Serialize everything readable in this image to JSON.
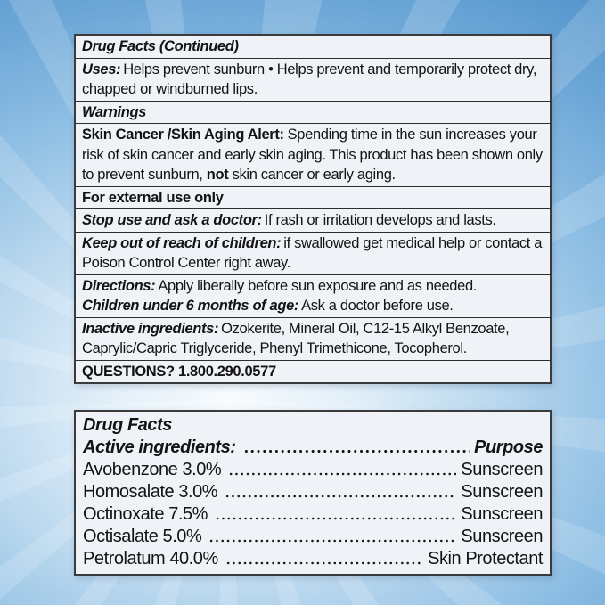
{
  "colors": {
    "sky_deep": "#4f92c9",
    "sky_light": "#e2eff9",
    "panel_bg": "#eff3f7",
    "panel_border": "#3b3b3b",
    "text": "#131313"
  },
  "top_panel": {
    "title": "Drug Facts (Continued)",
    "uses": {
      "lead": "Uses:",
      "text": "Helps prevent sunburn • Helps prevent and temporarily protect dry, chapped or windburned lips."
    },
    "warnings_heading": "Warnings",
    "skin_alert": {
      "lead": "Skin Cancer /Skin Aging Alert:",
      "text1": "Spending time in the sun increases your risk of skin cancer and early skin aging. This product has been shown only to prevent sunburn, ",
      "bold_word": "not",
      "text2": " skin cancer or early aging."
    },
    "external_use": "For external use only",
    "stop_use": {
      "lead": "Stop use and ask a doctor:",
      "text": "If rash or irritation develops and lasts."
    },
    "keep_out": {
      "lead": "Keep out of reach of children:",
      "text": "if swallowed get medical help or contact a Poison Control Center right away."
    },
    "directions": {
      "lead": "Directions:",
      "text": "Apply liberally before sun exposure and as needed."
    },
    "children_under6": {
      "lead": "Children under 6 months of age:",
      "text": "Ask a doctor before use."
    },
    "inactive": {
      "lead": "Inactive ingredients:",
      "text": "Ozokerite, Mineral Oil, C12-15 Alkyl Benzoate, Caprylic/Capric Triglyceride, Phenyl Trimethicone, Tocopherol."
    },
    "questions": "QUESTIONS? 1.800.290.0577"
  },
  "bottom_panel": {
    "title": "Drug Facts",
    "active_header": {
      "lead": "Active ingredients:",
      "purpose": "Purpose"
    },
    "ingredients": [
      {
        "name": "Avobenzone 3.0%",
        "purpose": "Sunscreen"
      },
      {
        "name": "Homosalate 3.0%",
        "purpose": "Sunscreen"
      },
      {
        "name": "Octinoxate 7.5%",
        "purpose": "Sunscreen"
      },
      {
        "name": "Octisalate 5.0%",
        "purpose": "Sunscreen"
      },
      {
        "name": "Petrolatum 40.0%",
        "purpose": "Skin Protectant"
      }
    ]
  }
}
